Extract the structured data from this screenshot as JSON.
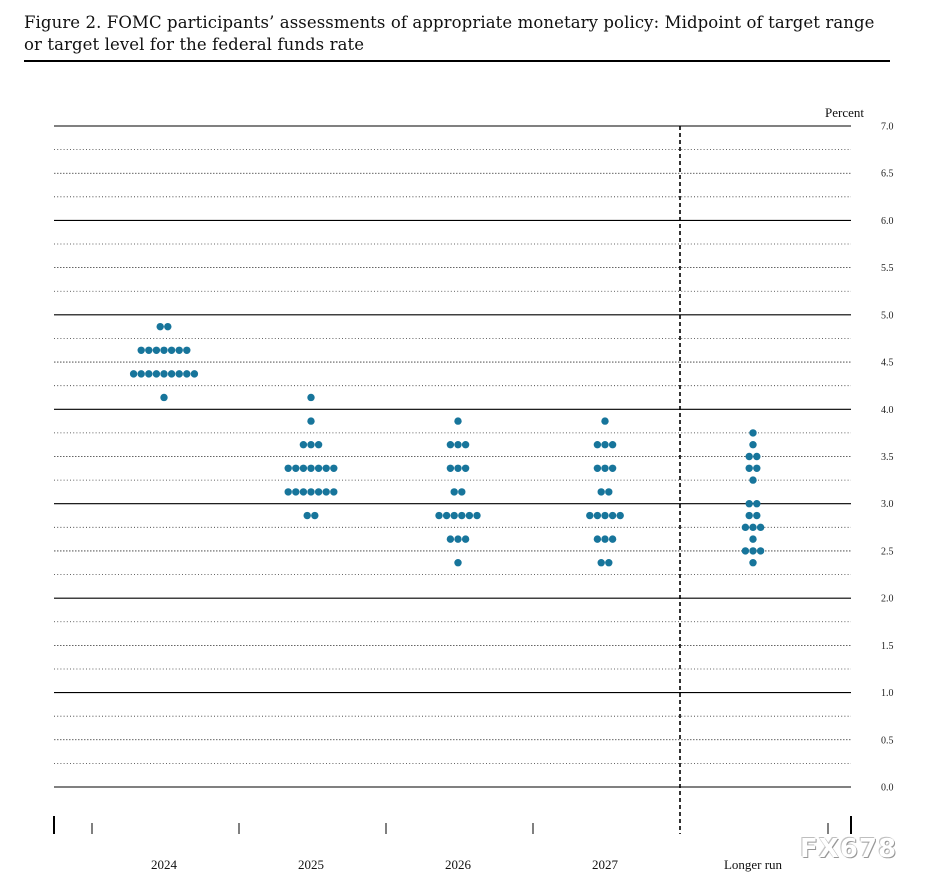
{
  "figure": {
    "title_line1": "Figure 2.  FOMC participants’ assessments of appropriate monetary policy: Midpoint of target range",
    "title_line2": "or target level for the federal funds rate"
  },
  "watermark": "FX678",
  "chart_data": {
    "type": "scatter",
    "subtype": "dot plot",
    "ylabel": "Percent",
    "ylim": [
      0,
      7
    ],
    "yticks": [
      "0.0",
      "0.5",
      "1.0",
      "1.5",
      "2.0",
      "2.5",
      "3.0",
      "3.5",
      "4.0",
      "4.5",
      "5.0",
      "5.5",
      "6.0",
      "6.5",
      "7.0"
    ],
    "grid": true,
    "dot_color": "#17759b",
    "categories": [
      "2024",
      "2025",
      "2026",
      "2027",
      "Longer run"
    ],
    "series": [
      {
        "category": "2024",
        "points": [
          {
            "y": 4.875,
            "count": 2
          },
          {
            "y": 4.625,
            "count": 7
          },
          {
            "y": 4.375,
            "count": 9
          },
          {
            "y": 4.125,
            "count": 1
          }
        ]
      },
      {
        "category": "2025",
        "points": [
          {
            "y": 4.125,
            "count": 1
          },
          {
            "y": 3.875,
            "count": 1
          },
          {
            "y": 3.625,
            "count": 3
          },
          {
            "y": 3.375,
            "count": 7
          },
          {
            "y": 3.125,
            "count": 7
          },
          {
            "y": 2.875,
            "count": 2
          }
        ]
      },
      {
        "category": "2026",
        "points": [
          {
            "y": 3.875,
            "count": 1
          },
          {
            "y": 3.625,
            "count": 3
          },
          {
            "y": 3.375,
            "count": 3
          },
          {
            "y": 3.125,
            "count": 2
          },
          {
            "y": 2.875,
            "count": 6
          },
          {
            "y": 2.625,
            "count": 3
          },
          {
            "y": 2.375,
            "count": 1
          }
        ]
      },
      {
        "category": "2027",
        "points": [
          {
            "y": 3.875,
            "count": 1
          },
          {
            "y": 3.625,
            "count": 3
          },
          {
            "y": 3.375,
            "count": 3
          },
          {
            "y": 3.125,
            "count": 2
          },
          {
            "y": 2.875,
            "count": 5
          },
          {
            "y": 2.625,
            "count": 3
          },
          {
            "y": 2.375,
            "count": 2
          }
        ]
      },
      {
        "category": "Longer run",
        "points": [
          {
            "y": 3.75,
            "count": 1
          },
          {
            "y": 3.625,
            "count": 1
          },
          {
            "y": 3.5,
            "count": 2
          },
          {
            "y": 3.375,
            "count": 2
          },
          {
            "y": 3.25,
            "count": 1
          },
          {
            "y": 3.0,
            "count": 2
          },
          {
            "y": 2.875,
            "count": 2
          },
          {
            "y": 2.75,
            "count": 3
          },
          {
            "y": 2.625,
            "count": 1
          },
          {
            "y": 2.5,
            "count": 3
          },
          {
            "y": 2.375,
            "count": 1
          }
        ]
      }
    ]
  }
}
